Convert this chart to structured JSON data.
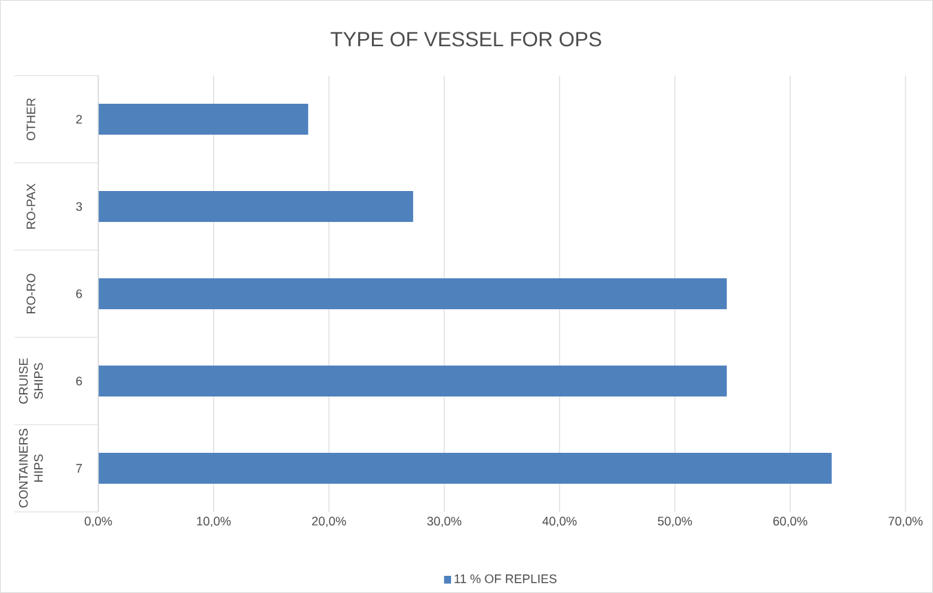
{
  "chart_data": {
    "type": "bar",
    "orientation": "horizontal",
    "title": "TYPE OF VESSEL FOR OPS",
    "categories": [
      "OTHER",
      "RO-PAX",
      "RO-RO",
      "CRUISE SHIPS",
      "CONTAINERS HIPS"
    ],
    "series": [
      {
        "name": "11 % OF REPLIES",
        "color": "#4f81bd",
        "values": [
          18.2,
          27.3,
          54.5,
          54.5,
          63.6
        ]
      }
    ],
    "annotations": [
      "2",
      "3",
      "6",
      "6",
      "7"
    ],
    "xlim": [
      0,
      70
    ],
    "xticks": [
      {
        "value": 0,
        "label": "0,0%"
      },
      {
        "value": 10,
        "label": "10,0%"
      },
      {
        "value": 20,
        "label": "20,0%"
      },
      {
        "value": 30,
        "label": "30,0%"
      },
      {
        "value": 40,
        "label": "40,0%"
      },
      {
        "value": 50,
        "label": "50,0%"
      },
      {
        "value": 60,
        "label": "60,0%"
      },
      {
        "value": 70,
        "label": "70,0%"
      }
    ],
    "grid": "x",
    "legend": "bottom"
  }
}
